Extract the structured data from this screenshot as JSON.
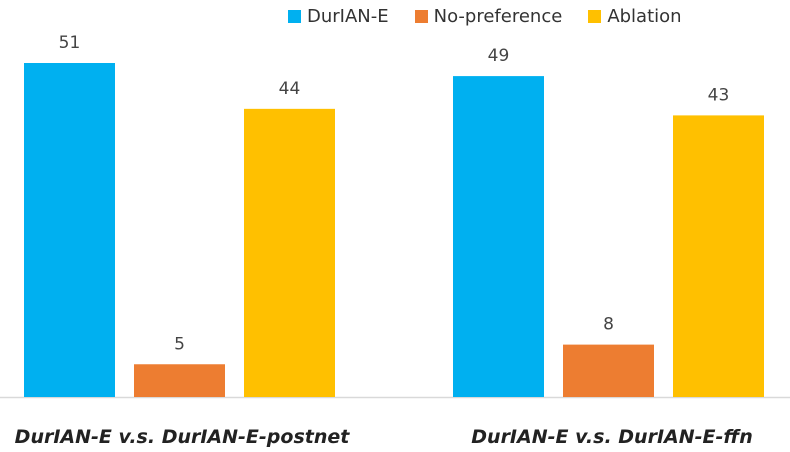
{
  "chart_data": {
    "type": "bar",
    "categories": [
      "DurIAN-E v.s. DurIAN-E-postnet",
      "DurIAN-E v.s. DurIAN-E-ffn"
    ],
    "series": [
      {
        "name": "DurIAN-E",
        "color": "#00B0F0",
        "values": [
          51,
          49
        ]
      },
      {
        "name": "No-preference",
        "color": "#ED7D31",
        "values": [
          5,
          8
        ]
      },
      {
        "name": "Ablation",
        "color": "#FFC000",
        "values": [
          44,
          43
        ]
      }
    ],
    "ylim": [
      0,
      51
    ],
    "legend_position": "top-right",
    "grid": false,
    "axis_color": "#d9d9d9"
  }
}
